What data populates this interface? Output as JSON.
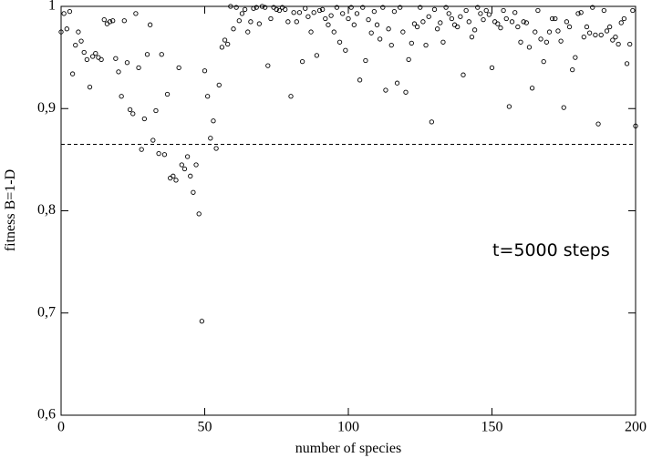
{
  "chart_data": {
    "type": "scatter",
    "xlabel": "number of species",
    "ylabel": "fitness B=1-D",
    "annotation": "t=5000 steps",
    "xlim": [
      0,
      200
    ],
    "xticks": [
      0,
      50,
      100,
      150,
      200
    ],
    "ylim": [
      0.6,
      1
    ],
    "yticks": [
      {
        "value": 0.6,
        "label": "0,6"
      },
      {
        "value": 0.7,
        "label": "0,7"
      },
      {
        "value": 0.8,
        "label": "0,8"
      },
      {
        "value": 0.9,
        "label": "0,9"
      },
      1
    ],
    "reference_line": {
      "value": 0.865,
      "dashed": true
    },
    "color": "#000000",
    "x": [
      0,
      1,
      2,
      3,
      4,
      5,
      6,
      7,
      8,
      9,
      10,
      11,
      12,
      13,
      14,
      15,
      16,
      17,
      18,
      19,
      20,
      21,
      22,
      23,
      24,
      25,
      26,
      27,
      28,
      29,
      30,
      31,
      32,
      33,
      34,
      35,
      36,
      37,
      38,
      39,
      40,
      41,
      42,
      43,
      44,
      45,
      46,
      47,
      48,
      49,
      50,
      51,
      52,
      53,
      54,
      55,
      56,
      57,
      58,
      59,
      60,
      61,
      62,
      63,
      64,
      65,
      66,
      67,
      68,
      69,
      70,
      71,
      72,
      73,
      74,
      75,
      76,
      77,
      78,
      79,
      80,
      81,
      82,
      83,
      84,
      85,
      86,
      87,
      88,
      89,
      90,
      91,
      92,
      93,
      94,
      95,
      96,
      97,
      98,
      99,
      100,
      101,
      102,
      103,
      104,
      105,
      106,
      107,
      108,
      109,
      110,
      111,
      112,
      113,
      114,
      115,
      116,
      117,
      118,
      119,
      120,
      121,
      122,
      123,
      124,
      125,
      126,
      127,
      128,
      129,
      130,
      131,
      132,
      133,
      134,
      135,
      136,
      137,
      138,
      139,
      140,
      141,
      142,
      143,
      144,
      145,
      146,
      147,
      148,
      149,
      150,
      151,
      152,
      153,
      154,
      155,
      156,
      157,
      158,
      159,
      160,
      161,
      162,
      163,
      164,
      165,
      166,
      167,
      168,
      169,
      170,
      171,
      172,
      173,
      174,
      175,
      176,
      177,
      178,
      179,
      180,
      181,
      182,
      183,
      184,
      185,
      186,
      187,
      188,
      189,
      190,
      191,
      192,
      193,
      194,
      195,
      196,
      197,
      198,
      199,
      200
    ],
    "values": [
      0.975,
      0.993,
      0.978,
      0.995,
      0.934,
      0.962,
      0.975,
      0.966,
      0.955,
      0.948,
      0.921,
      0.951,
      0.954,
      0.95,
      0.948,
      0.987,
      0.983,
      0.985,
      0.986,
      0.949,
      0.936,
      0.912,
      0.986,
      0.945,
      0.899,
      0.895,
      0.993,
      0.94,
      0.86,
      0.89,
      0.953,
      0.982,
      0.869,
      0.898,
      0.856,
      0.953,
      0.855,
      0.914,
      0.832,
      0.834,
      0.83,
      0.94,
      0.845,
      0.841,
      0.853,
      0.834,
      0.818,
      0.845,
      0.797,
      0.692,
      0.937,
      0.912,
      0.871,
      0.888,
      0.861,
      0.923,
      0.96,
      0.967,
      0.963,
      1.0,
      0.978,
      0.999,
      0.986,
      0.993,
      0.997,
      0.975,
      0.985,
      0.998,
      0.999,
      0.983,
      1.0,
      0.999,
      0.942,
      0.988,
      0.999,
      0.997,
      0.996,
      0.999,
      0.997,
      0.985,
      0.912,
      0.994,
      0.985,
      0.994,
      0.946,
      0.998,
      0.99,
      0.975,
      0.994,
      0.952,
      0.996,
      0.997,
      0.988,
      0.982,
      0.991,
      0.975,
      0.999,
      0.965,
      0.993,
      0.957,
      0.988,
      0.999,
      0.982,
      0.993,
      0.928,
      0.999,
      0.947,
      0.987,
      0.974,
      0.995,
      0.982,
      0.968,
      0.999,
      0.918,
      0.978,
      0.962,
      0.995,
      0.925,
      0.999,
      0.975,
      0.916,
      0.948,
      0.964,
      0.983,
      0.98,
      0.999,
      0.985,
      0.962,
      0.99,
      0.887,
      0.997,
      0.978,
      0.984,
      0.965,
      0.999,
      0.993,
      0.988,
      0.982,
      0.98,
      0.99,
      0.933,
      0.996,
      0.985,
      0.97,
      0.977,
      0.999,
      0.993,
      0.987,
      0.996,
      0.992,
      0.94,
      0.985,
      0.983,
      0.979,
      0.996,
      0.988,
      0.902,
      0.985,
      0.994,
      0.98,
      0.965,
      0.985,
      0.984,
      0.96,
      0.92,
      0.975,
      0.996,
      0.968,
      0.946,
      0.965,
      0.975,
      0.988,
      0.988,
      0.976,
      0.966,
      0.901,
      0.985,
      0.98,
      0.938,
      0.95,
      0.993,
      0.994,
      0.97,
      0.98,
      0.974,
      0.999,
      0.972,
      0.885,
      0.972,
      0.996,
      0.976,
      0.98,
      0.967,
      0.97,
      0.963,
      0.984,
      0.988,
      0.944,
      0.963,
      0.996,
      0.883
    ]
  }
}
